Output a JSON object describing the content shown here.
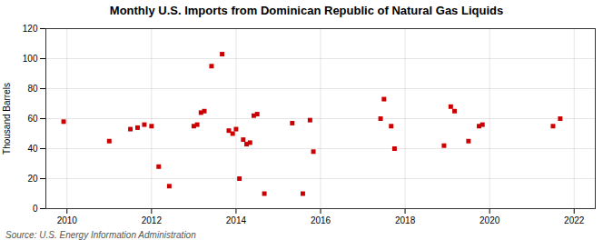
{
  "chart_data": {
    "type": "scatter",
    "title": "Monthly U.S. Imports from Dominican Republic of Natural Gas Liquids",
    "ylabel": "Thousand Barrels",
    "source": "Source: U.S. Energy Information Administration",
    "color": "#cc0000",
    "marker": "square",
    "grid": true,
    "xlim": [
      2009.5,
      2022.5
    ],
    "ylim": [
      0,
      120
    ],
    "xticks": [
      2010,
      2012,
      2014,
      2016,
      2018,
      2020,
      2022
    ],
    "yticks": [
      0,
      20,
      40,
      60,
      80,
      100,
      120
    ],
    "x": [
      2009.92,
      2011.0,
      2011.5,
      2011.67,
      2011.83,
      2012.0,
      2012.17,
      2012.42,
      2013.0,
      2013.08,
      2013.17,
      2013.25,
      2013.42,
      2013.67,
      2013.83,
      2013.92,
      2014.0,
      2014.08,
      2014.17,
      2014.25,
      2014.33,
      2014.42,
      2014.5,
      2014.67,
      2015.33,
      2015.58,
      2015.75,
      2015.83,
      2017.42,
      2017.5,
      2017.67,
      2017.75,
      2018.92,
      2019.08,
      2019.17,
      2019.5,
      2019.75,
      2019.83,
      2021.5,
      2021.67
    ],
    "values": [
      58,
      45,
      53,
      54,
      56,
      55,
      28,
      15,
      55,
      56,
      64,
      65,
      95,
      103,
      52,
      50,
      53,
      20,
      46,
      43,
      44,
      62,
      63,
      10,
      57,
      10,
      59,
      38,
      60,
      73,
      55,
      40,
      42,
      68,
      65,
      45,
      55,
      56,
      55,
      60
    ]
  }
}
